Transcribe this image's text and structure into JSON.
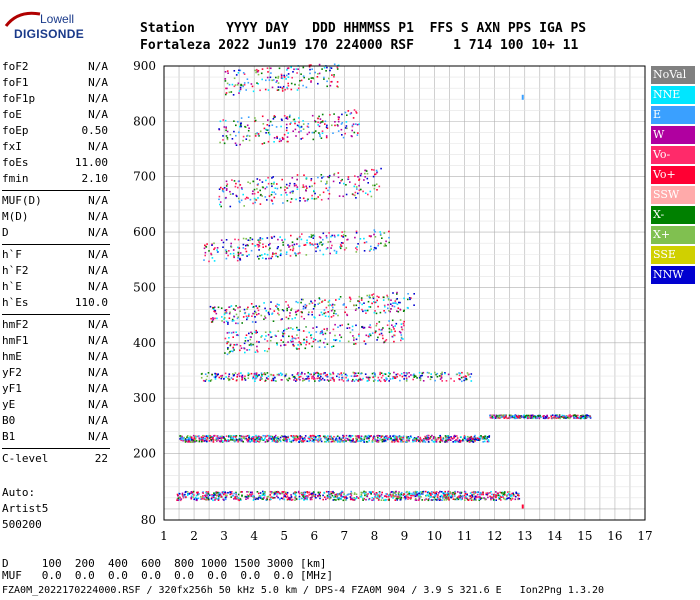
{
  "logo": {
    "top": "Lowell",
    "bottom": "DIGISONDE"
  },
  "header": {
    "line1": "Station    YYYY DAY   DDD HHMMSS P1  FFS S AXN PPS IGA PS",
    "line2": "Fortaleza 2022 Jun19 170 224000 RSF     1 714 100 10+ 11"
  },
  "params": [
    {
      "label": "foF2",
      "value": "N/A"
    },
    {
      "label": "foF1",
      "value": "N/A"
    },
    {
      "label": "foF1p",
      "value": "N/A"
    },
    {
      "label": "foE",
      "value": "N/A"
    },
    {
      "label": "foEp",
      "value": "0.50"
    },
    {
      "label": "fxI",
      "value": "N/A"
    },
    {
      "label": "foEs",
      "value": "11.00"
    },
    {
      "label": "fmin",
      "value": "2.10"
    },
    {
      "label": "MUF(D)",
      "value": "N/A"
    },
    {
      "label": "M(D)",
      "value": "N/A"
    },
    {
      "label": "D",
      "value": "N/A"
    },
    {
      "label": "h`F",
      "value": "N/A"
    },
    {
      "label": "h`F2",
      "value": "N/A"
    },
    {
      "label": "h`E",
      "value": "N/A"
    },
    {
      "label": "h`Es",
      "value": "110.0"
    },
    {
      "label": "hmF2",
      "value": "N/A"
    },
    {
      "label": "hmF1",
      "value": "N/A"
    },
    {
      "label": "hmE",
      "value": "N/A"
    },
    {
      "label": "yF2",
      "value": "N/A"
    },
    {
      "label": "yF1",
      "value": "N/A"
    },
    {
      "label": "yE",
      "value": "N/A"
    },
    {
      "label": "B0",
      "value": "N/A"
    },
    {
      "label": "B1",
      "value": "N/A"
    },
    {
      "label": "C-level",
      "value": "22"
    }
  ],
  "auto": {
    "line1": "Auto:",
    "line2": "Artist5",
    "line3": "500200"
  },
  "legend": [
    {
      "label": "NoVal",
      "color": "#808080"
    },
    {
      "label": "NNE",
      "color": "#00e6ff"
    },
    {
      "label": "E",
      "color": "#3aa0ff"
    },
    {
      "label": "W",
      "color": "#b000a0"
    },
    {
      "label": "Vo-",
      "color": "#ff2a6a"
    },
    {
      "label": "Vo+",
      "color": "#ff0033"
    },
    {
      "label": "SSW",
      "color": "#ffaaaa"
    },
    {
      "label": "X-",
      "color": "#008000"
    },
    {
      "label": "X+",
      "color": "#80c050"
    },
    {
      "label": "SSE",
      "color": "#d0d000"
    },
    {
      "label": "NNW",
      "color": "#0000d0"
    }
  ],
  "bottom": {
    "line1": "D     100  200  400  600  800 1000 1500 3000 [km]",
    "line2": "MUF   0.0  0.0  0.0  0.0  0.0  0.0  0.0  0.0 [MHz]"
  },
  "footer": "FZA0M_2022170224000.RSF / 320fx256h 50 kHz 5.0 km / DPS-4 FZA0M 904 / 3.9 S 321.6 E   Ion2Png 1.3.20",
  "chart_data": {
    "type": "scatter",
    "title": "",
    "xlabel": "",
    "ylabel": "",
    "xlim": [
      1,
      17
    ],
    "ylim": [
      80,
      900
    ],
    "x_ticks": [
      1,
      2,
      3,
      4,
      5,
      6,
      7,
      8,
      9,
      10,
      11,
      12,
      13,
      14,
      15,
      16,
      17
    ],
    "y_ticks": [
      80,
      200,
      300,
      400,
      500,
      600,
      700,
      800,
      900
    ],
    "grid": true,
    "traces": [
      {
        "name": "Es-layer",
        "f_start": 1.4,
        "f_end": 12.8,
        "h": 125,
        "spread": 8
      },
      {
        "name": "Es-2hop",
        "f_start": 1.5,
        "f_end": 11.8,
        "h": 228,
        "spread": 6
      },
      {
        "name": "Es-2hop-ext",
        "f_start": 11.8,
        "f_end": 15.2,
        "h": 268,
        "spread": 3
      },
      {
        "name": "Es-3hop",
        "f_start": 2.2,
        "f_end": 11.2,
        "h": 340,
        "spread": 8
      },
      {
        "name": "F-echo-400",
        "f_start": 3.0,
        "f_end": 9.0,
        "h": 400,
        "spread": 20
      },
      {
        "name": "F-echo-450",
        "f_start": 2.5,
        "f_end": 9.3,
        "h": 450,
        "spread": 18
      },
      {
        "name": "F-echo-560",
        "f_start": 2.3,
        "f_end": 8.5,
        "h": 565,
        "spread": 20
      },
      {
        "name": "F-echo-670",
        "f_start": 2.8,
        "f_end": 8.2,
        "h": 670,
        "spread": 25
      },
      {
        "name": "F-echo-780",
        "f_start": 2.8,
        "f_end": 7.5,
        "h": 780,
        "spread": 25
      },
      {
        "name": "F-echo-870",
        "f_start": 3.0,
        "f_end": 6.8,
        "h": 870,
        "spread": 22
      }
    ]
  }
}
